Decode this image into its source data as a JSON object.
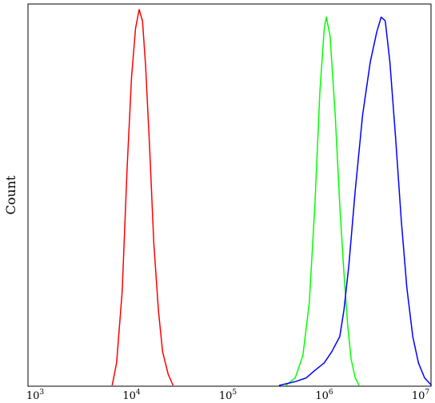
{
  "chart_data": {
    "type": "line",
    "title": "",
    "xlabel": "",
    "ylabel": "Count",
    "x_scale": "log",
    "xlim": [
      1000,
      14000000
    ],
    "ylim": [
      0,
      1.0
    ],
    "grid": false,
    "legend": "none",
    "x_ticks": [
      {
        "value": 1000,
        "base": "10",
        "exp": "3"
      },
      {
        "value": 10000,
        "base": "10",
        "exp": "4"
      },
      {
        "value": 100000,
        "base": "10",
        "exp": "5"
      },
      {
        "value": 1000000,
        "base": "10",
        "exp": "6"
      },
      {
        "value": 10000000,
        "base": "10",
        "exp": "7"
      }
    ],
    "series": [
      {
        "color": "#ff0000",
        "points": [
          [
            6300,
            0
          ],
          [
            7000,
            0.06
          ],
          [
            8000,
            0.25
          ],
          [
            9000,
            0.58
          ],
          [
            10000,
            0.82
          ],
          [
            11000,
            0.95
          ],
          [
            12000,
            1.0
          ],
          [
            13000,
            0.97
          ],
          [
            14000,
            0.85
          ],
          [
            15500,
            0.62
          ],
          [
            17000,
            0.38
          ],
          [
            19000,
            0.2
          ],
          [
            21000,
            0.09
          ],
          [
            24000,
            0.03
          ],
          [
            27000,
            0
          ]
        ]
      },
      {
        "color": "#00ff00",
        "points": [
          [
            400000,
            0
          ],
          [
            500000,
            0.02
          ],
          [
            600000,
            0.08
          ],
          [
            700000,
            0.22
          ],
          [
            800000,
            0.48
          ],
          [
            900000,
            0.78
          ],
          [
            1000000,
            0.95
          ],
          [
            1050000,
            0.98
          ],
          [
            1150000,
            0.93
          ],
          [
            1300000,
            0.72
          ],
          [
            1450000,
            0.48
          ],
          [
            1600000,
            0.3
          ],
          [
            1750000,
            0.16
          ],
          [
            1900000,
            0.07
          ],
          [
            2100000,
            0.02
          ],
          [
            2300000,
            0
          ]
        ]
      },
      {
        "color": "#0000ff",
        "points": [
          [
            340000,
            0
          ],
          [
            500000,
            0.01
          ],
          [
            650000,
            0.02
          ],
          [
            800000,
            0.04
          ],
          [
            1000000,
            0.06
          ],
          [
            1200000,
            0.09
          ],
          [
            1450000,
            0.13
          ],
          [
            1600000,
            0.2
          ],
          [
            1800000,
            0.32
          ],
          [
            2100000,
            0.52
          ],
          [
            2500000,
            0.72
          ],
          [
            3000000,
            0.86
          ],
          [
            3500000,
            0.94
          ],
          [
            3900000,
            0.98
          ],
          [
            4300000,
            0.97
          ],
          [
            4800000,
            0.86
          ],
          [
            5500000,
            0.66
          ],
          [
            6300000,
            0.44
          ],
          [
            7200000,
            0.26
          ],
          [
            8300000,
            0.13
          ],
          [
            9500000,
            0.06
          ],
          [
            11000000,
            0.02
          ],
          [
            13000000,
            0
          ]
        ]
      }
    ]
  }
}
